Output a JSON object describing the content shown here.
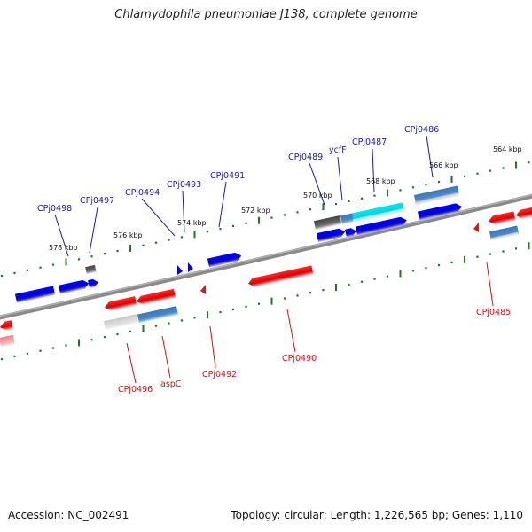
{
  "title": "Chlamydophila pneumoniae J138, complete genome",
  "footer": {
    "accession": "Accession: NC_002491",
    "topology": "Topology: circular; Length: 1,226,565 bp; Genes: 1,110"
  },
  "colors": {
    "forward": "#0000dd",
    "reverse": "#e81010",
    "forward_label": "#1a1aa8",
    "reverse_label": "#cc1414",
    "tick": "#1f7a1f",
    "backbone": "#7a7a7a"
  },
  "kbp_labels": [
    "578 kbp",
    "576 kbp",
    "574 kbp",
    "572 kbp",
    "570 kbp",
    "568 kbp",
    "566 kbp",
    "564 kbp"
  ],
  "gene_labels": {
    "forward": [
      "CPj0498",
      "CPj0497",
      "CPj0494",
      "CPj0493",
      "CPj0491",
      "CPj0489",
      "ycfF",
      "CPj0487",
      "CPj0486"
    ],
    "reverse": [
      "CPj0496",
      "aspC",
      "CPj0492",
      "CPj0490",
      "CPj0485"
    ]
  }
}
